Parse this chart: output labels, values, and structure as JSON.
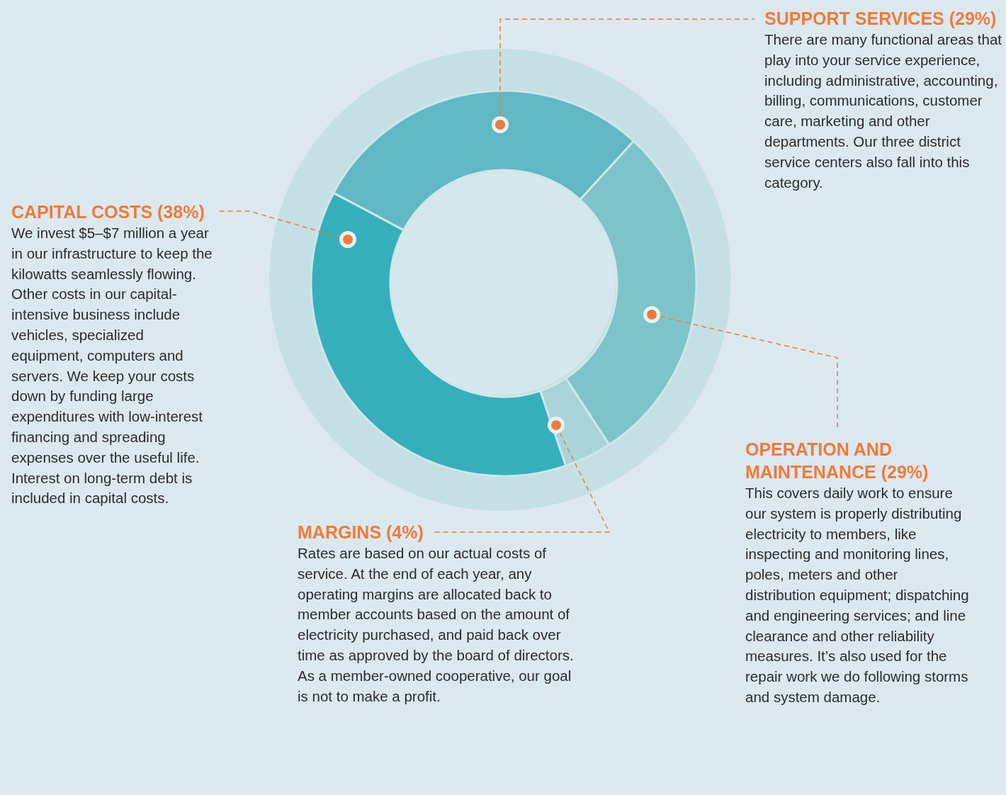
{
  "chart_data": {
    "type": "donut",
    "categories": [
      "SUPPORT SERVICES (29%)",
      "OPERATION AND MAINTENANCE (29%)",
      "MARGINS (4%)",
      "CAPITAL COSTS (38%)"
    ],
    "values": [
      29,
      29,
      4,
      38
    ],
    "colors": [
      "#5fb8c3",
      "#7cc3ca",
      "#a8d4d9",
      "#35afbb"
    ],
    "legend": false,
    "annotations": [
      "There are many functional areas that play into your service experience, including administrative, accounting, billing, communications, customer care, marketing and other departments. Our three district service centers also fall into this category.",
      "This covers daily work to ensure our system is properly distributing electricity to members, like inspecting and monitoring lines, poles, meters and other distribution equipment; dispatching and engineering services; and line clearance and other reliability measures. It’s also used for the repair work we do following storms and system damage.",
      "Rates are based on our actual costs of service. At the end of each year, any operating margins are allocated back to member accounts based on the amount of electricity purchased, and paid back over time as approved by the board of directors. As a member-owned cooperative, our goal is not to make a profit.",
      "We invest $5–$7 million a year in our infrastructure to keep the kilowatts seamlessly flowing. Other costs in our capital-intensive business include vehicles, specialized equipment, computers and servers. We keep your costs down by funding large expenditures with low-interest financing and spreading expenses over the useful life. Interest on long-term debt is included in capital costs."
    ]
  }
}
